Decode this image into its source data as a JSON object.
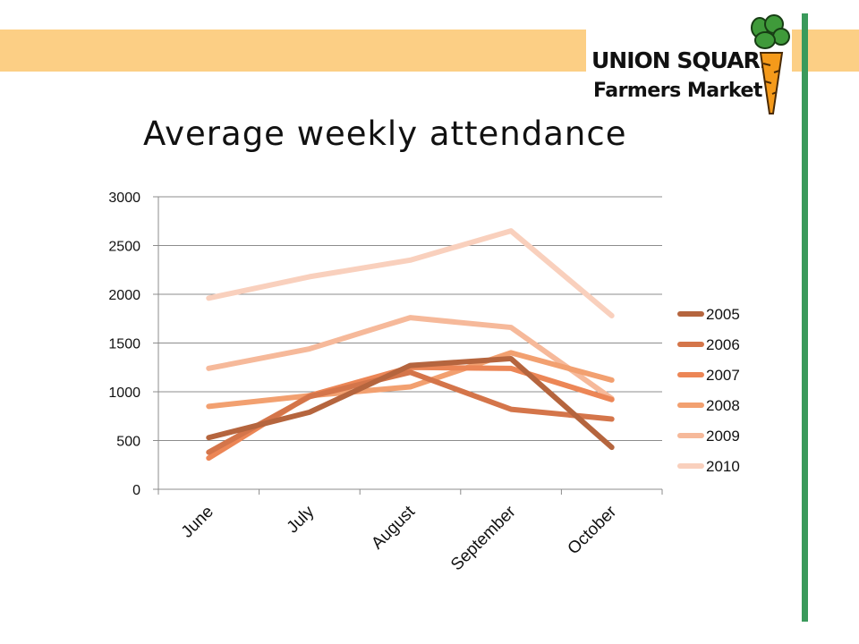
{
  "logo": {
    "line1": "UNION SQUARE",
    "line2": "Farmers Market",
    "carrot_icon": "carrot-icon"
  },
  "colors": {
    "band": "#fccf85",
    "rail": "#3a9a5b",
    "grid": "#8c8c8c"
  },
  "chart_data": {
    "type": "line",
    "title": "Average weekly attendance",
    "xlabel": "",
    "ylabel": "",
    "categories": [
      "June",
      "July",
      "August",
      "September",
      "October"
    ],
    "ylim": [
      0,
      3000
    ],
    "yticks": [
      0,
      500,
      1000,
      1500,
      2000,
      2500,
      3000
    ],
    "grid": true,
    "legend_position": "right",
    "series": [
      {
        "name": "2005",
        "color": "#b5653e",
        "values": [
          530,
          790,
          1270,
          1340,
          430
        ]
      },
      {
        "name": "2006",
        "color": "#d4754a",
        "values": [
          380,
          950,
          1200,
          820,
          720
        ]
      },
      {
        "name": "2007",
        "color": "#ec8656",
        "values": [
          320,
          960,
          1250,
          1240,
          920
        ]
      },
      {
        "name": "2008",
        "color": "#f2a070",
        "values": [
          850,
          960,
          1050,
          1400,
          1120
        ]
      },
      {
        "name": "2009",
        "color": "#f6b99a",
        "values": [
          1240,
          1440,
          1760,
          1660,
          930
        ]
      },
      {
        "name": "2010",
        "color": "#f9d0bd",
        "values": [
          1960,
          2180,
          2350,
          2650,
          1780
        ]
      }
    ]
  }
}
